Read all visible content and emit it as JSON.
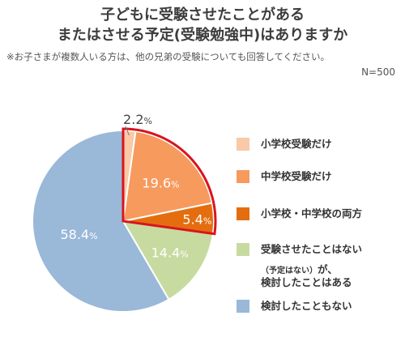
{
  "header": {
    "title_line1": "子どもに受験させたことがある",
    "title_line2": "またはさせる予定(受験勉強中)はありますか",
    "note": "※お子さまが複数人いる方は、他の兄弟の受験についても回答してください。",
    "base": "N=500"
  },
  "legend": {
    "items": [
      {
        "label": "小学校受験だけ"
      },
      {
        "label": "中学校受験だけ"
      },
      {
        "label": "小学校・中学校の両方"
      },
      {
        "label": "受験させたことはない",
        "sub": "（予定はない）",
        "sub2": "が、",
        "label3": "検討したことはある"
      },
      {
        "label": "検討したこともない"
      }
    ]
  },
  "chart_data": {
    "type": "pie",
    "title": "子どもに受験させたことがある またはさせる予定(受験勉強中)はありますか",
    "categories": [
      "小学校受験だけ",
      "中学校受験だけ",
      "小学校・中学校の両方",
      "受験させたことはない（予定はない）が、検討したことはある",
      "検討したこともない"
    ],
    "values": [
      2.2,
      19.6,
      5.4,
      14.4,
      58.4
    ],
    "value_labels": [
      "2.2%",
      "19.6%",
      "5.4%",
      "14.4%",
      "58.4%"
    ],
    "colors": [
      "#f9c9a8",
      "#f79a5e",
      "#e46e0f",
      "#c7dba0",
      "#9ab8d8"
    ],
    "highlight_color": "#d9141e",
    "highlighted_slices": [
      0,
      1,
      2
    ],
    "start": "12 o'clock, clockwise",
    "legend_position": "right"
  }
}
